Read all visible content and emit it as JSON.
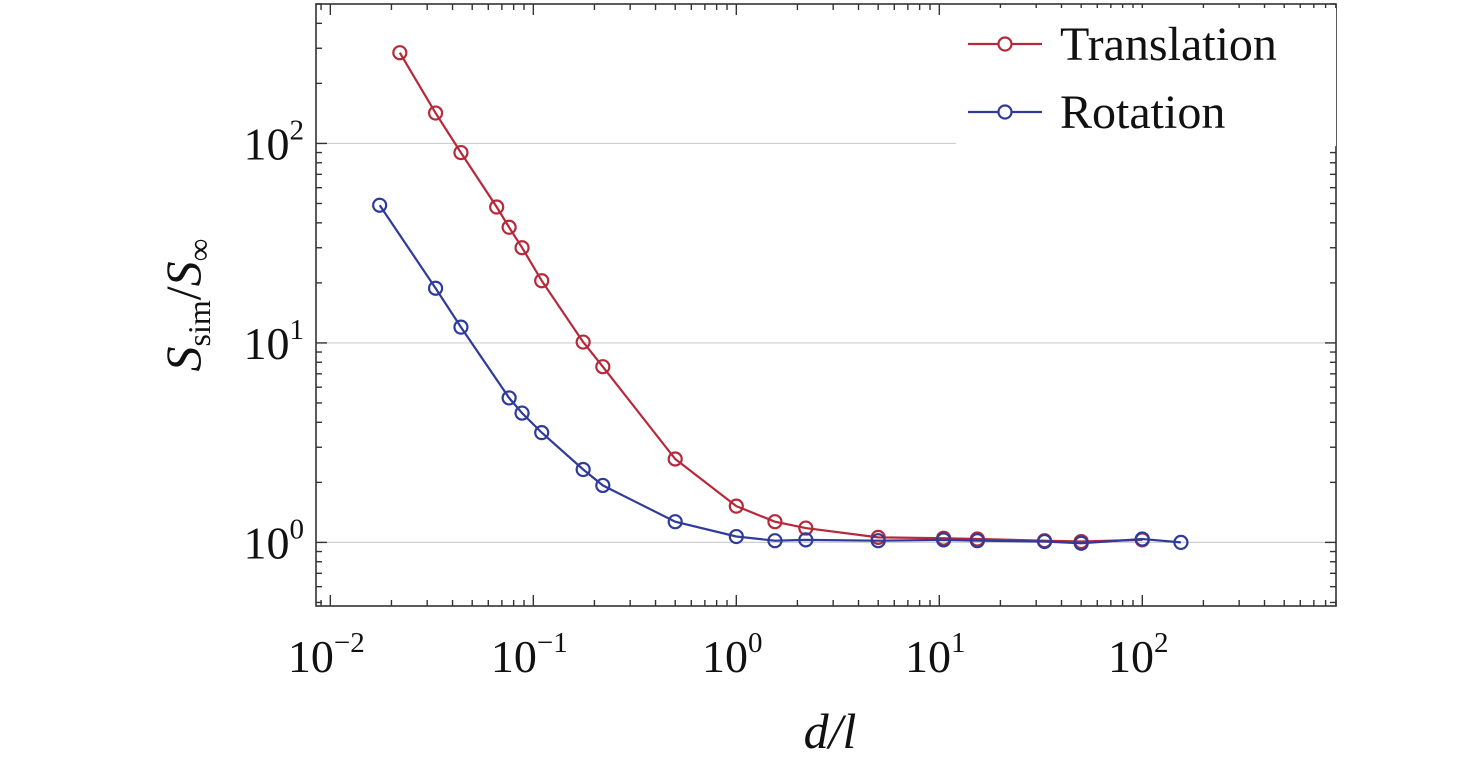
{
  "chart_data": {
    "type": "line",
    "xscale": "log",
    "yscale": "log",
    "xlim": [
      0.0085,
      900
    ],
    "ylim": [
      0.48,
      500
    ],
    "xticks": [
      {
        "value": 0.01,
        "base": "10",
        "exp": "−2"
      },
      {
        "value": 0.1,
        "base": "10",
        "exp": "−1"
      },
      {
        "value": 1,
        "base": "10",
        "exp": "0"
      },
      {
        "value": 10,
        "base": "10",
        "exp": "1"
      },
      {
        "value": 100,
        "base": "10",
        "exp": "2"
      }
    ],
    "yticks": [
      {
        "value": 1,
        "base": "10",
        "exp": "0"
      },
      {
        "value": 10,
        "base": "10",
        "exp": "1"
      },
      {
        "value": 100,
        "base": "10",
        "exp": "2"
      }
    ],
    "xlabel": "d/l",
    "ylabel": {
      "main": "S",
      "sub": "sim",
      "sep": "/",
      "main2": "S",
      "sub2": "∞"
    },
    "grid": "horizontal at y-ticks",
    "legend": "top-right",
    "series": [
      {
        "name": "Translation",
        "color": "#b5293a",
        "x": [
          0.022,
          0.033,
          0.044,
          0.066,
          0.076,
          0.088,
          0.11,
          0.176,
          0.22,
          0.5,
          1.0,
          1.55,
          2.2,
          5.0,
          10.5,
          15.4,
          33,
          50,
          100
        ],
        "y": [
          285,
          142,
          90,
          48,
          38,
          30,
          20.5,
          10.1,
          7.6,
          2.62,
          1.52,
          1.27,
          1.18,
          1.06,
          1.05,
          1.04,
          1.02,
          1.01,
          1.03
        ]
      },
      {
        "name": "Rotation",
        "color": "#2e3b9a",
        "x": [
          0.0175,
          0.033,
          0.044,
          0.076,
          0.088,
          0.11,
          0.176,
          0.22,
          0.5,
          1.0,
          1.55,
          2.2,
          5.0,
          10.5,
          15.4,
          33,
          50,
          100,
          155
        ],
        "y": [
          49,
          18.8,
          12.0,
          5.3,
          4.45,
          3.55,
          2.32,
          1.93,
          1.27,
          1.07,
          1.02,
          1.03,
          1.02,
          1.03,
          1.02,
          1.01,
          0.99,
          1.04,
          1.0
        ]
      }
    ]
  }
}
